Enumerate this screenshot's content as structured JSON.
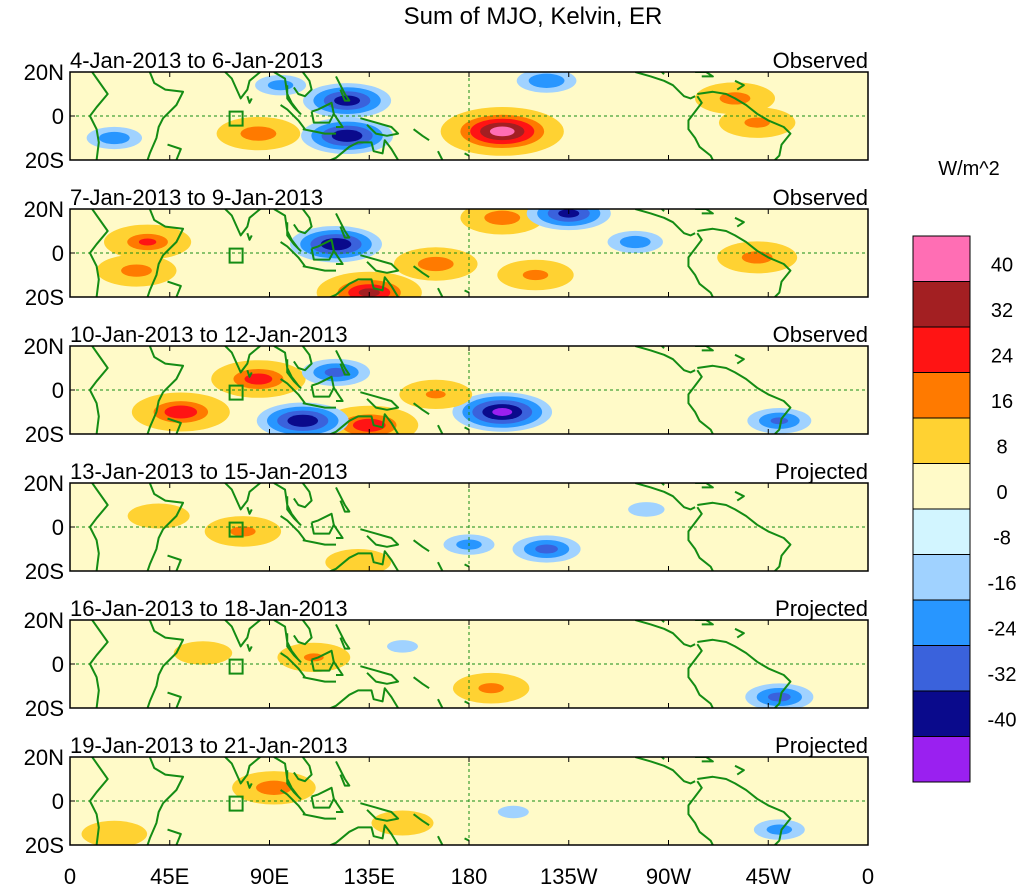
{
  "chart_data": {
    "type": "heatmap",
    "title": "Sum of MJO, Kelvin, ER",
    "colorbar": {
      "units": "W/m^2",
      "ticks": [
        "40",
        "32",
        "24",
        "16",
        "8",
        "0",
        "-8",
        "-16",
        "-24",
        "-32",
        "-40"
      ],
      "colors": [
        "#ff6eb4",
        "#a31f22",
        "#ff1414",
        "#ff7a00",
        "#ffd232",
        "#fffac8",
        "#d2f5ff",
        "#a0d2ff",
        "#2896ff",
        "#3a62dc",
        "#0a0a8c",
        "#9a20f0"
      ]
    },
    "x_ticks": [
      "0",
      "45E",
      "90E",
      "135E",
      "180",
      "135W",
      "90W",
      "45W",
      "0"
    ],
    "y_ticks": [
      "20N",
      "0",
      "20S"
    ],
    "x_range_deg": [
      0,
      360
    ],
    "y_range_deg": [
      -20,
      20
    ],
    "panels": [
      {
        "date_range": "4-Jan-2013 to 6-Jan-2013",
        "status": "Observed",
        "anomalies": [
          {
            "lon": 195,
            "lat": -7,
            "value": 44
          },
          {
            "lon": 85,
            "lat": -8,
            "value": 22
          },
          {
            "lon": 300,
            "lat": 8,
            "value": 20
          },
          {
            "lon": 310,
            "lat": -3,
            "value": 18
          },
          {
            "lon": 125,
            "lat": 7,
            "value": -36
          },
          {
            "lon": 125,
            "lat": -9,
            "value": -38
          },
          {
            "lon": 215,
            "lat": 16,
            "value": -22
          },
          {
            "lon": 20,
            "lat": -10,
            "value": -20
          },
          {
            "lon": 95,
            "lat": 14,
            "value": -18
          }
        ]
      },
      {
        "date_range": "7-Jan-2013 to 9-Jan-2013",
        "status": "Observed",
        "anomalies": [
          {
            "lon": 35,
            "lat": 5,
            "value": 24
          },
          {
            "lon": 30,
            "lat": -8,
            "value": 20
          },
          {
            "lon": 135,
            "lat": -18,
            "value": 34
          },
          {
            "lon": 165,
            "lat": -5,
            "value": 22
          },
          {
            "lon": 195,
            "lat": 16,
            "value": 22
          },
          {
            "lon": 210,
            "lat": -10,
            "value": 18
          },
          {
            "lon": 310,
            "lat": -2,
            "value": 20
          },
          {
            "lon": 120,
            "lat": 4,
            "value": -38
          },
          {
            "lon": 225,
            "lat": 18,
            "value": -34
          },
          {
            "lon": 255,
            "lat": 5,
            "value": -20
          }
        ]
      },
      {
        "date_range": "10-Jan-2013 to 12-Jan-2013",
        "status": "Observed",
        "anomalies": [
          {
            "lon": 85,
            "lat": 5,
            "value": 28
          },
          {
            "lon": 50,
            "lat": -10,
            "value": 30
          },
          {
            "lon": 135,
            "lat": -16,
            "value": 30
          },
          {
            "lon": 195,
            "lat": -10,
            "value": -42
          },
          {
            "lon": 105,
            "lat": -14,
            "value": -38
          },
          {
            "lon": 120,
            "lat": 8,
            "value": -26
          },
          {
            "lon": 320,
            "lat": -14,
            "value": -24
          },
          {
            "lon": 165,
            "lat": -2,
            "value": 16
          }
        ]
      },
      {
        "date_range": "13-Jan-2013 to 15-Jan-2013",
        "status": "Projected",
        "anomalies": [
          {
            "lon": 78,
            "lat": -2,
            "value": 18
          },
          {
            "lon": 130,
            "lat": -16,
            "value": 12
          },
          {
            "lon": 215,
            "lat": -10,
            "value": -26
          },
          {
            "lon": 180,
            "lat": -8,
            "value": -18
          },
          {
            "lon": 260,
            "lat": 8,
            "value": -12
          },
          {
            "lon": 40,
            "lat": 5,
            "value": 10
          }
        ]
      },
      {
        "date_range": "16-Jan-2013 to 18-Jan-2013",
        "status": "Projected",
        "anomalies": [
          {
            "lon": 110,
            "lat": 3,
            "value": 16
          },
          {
            "lon": 190,
            "lat": -11,
            "value": 18
          },
          {
            "lon": 320,
            "lat": -15,
            "value": -26
          },
          {
            "lon": 150,
            "lat": 8,
            "value": -10
          },
          {
            "lon": 60,
            "lat": 5,
            "value": 8
          }
        ]
      },
      {
        "date_range": "19-Jan-2013 to 21-Jan-2013",
        "status": "Projected",
        "anomalies": [
          {
            "lon": 92,
            "lat": 6,
            "value": 22
          },
          {
            "lon": 20,
            "lat": -15,
            "value": 12
          },
          {
            "lon": 320,
            "lat": -13,
            "value": -18
          },
          {
            "lon": 200,
            "lat": -5,
            "value": -10
          },
          {
            "lon": 150,
            "lat": -10,
            "value": 10
          }
        ]
      }
    ]
  }
}
